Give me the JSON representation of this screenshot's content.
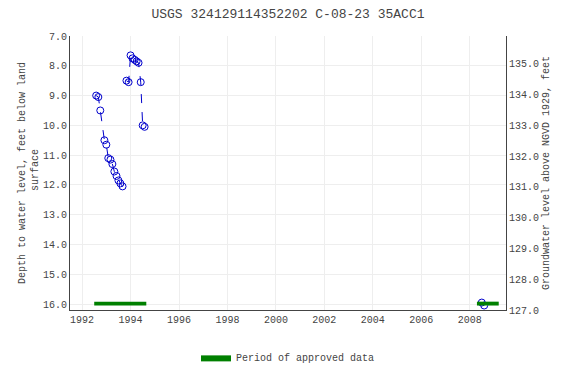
{
  "chart_data": {
    "type": "line",
    "title": "USGS 324129114352202 C-08-23 35ACC1",
    "y_label": "Depth to water level, feet below land\n surface",
    "y2_label": "Groundwater level above NGVD 1929, feet",
    "xlim": [
      1991.5,
      2009.5
    ],
    "xticks": [
      1992,
      1994,
      1996,
      1998,
      2000,
      2002,
      2004,
      2006,
      2008
    ],
    "ylim": [
      16.2,
      7.0
    ],
    "yticks": [
      {
        "value": 7.0,
        "label": "7.0"
      },
      {
        "value": 8.0,
        "label": "8.0"
      },
      {
        "value": 9.0,
        "label": "9.0"
      },
      {
        "value": 10.0,
        "label": "10.0"
      },
      {
        "value": 11.0,
        "label": "11.0"
      },
      {
        "value": 12.0,
        "label": "12.0"
      },
      {
        "value": 13.0,
        "label": "13.0"
      },
      {
        "value": 14.0,
        "label": "14.0"
      },
      {
        "value": 15.0,
        "label": "15.0"
      },
      {
        "value": 16.0,
        "label": "16.0"
      }
    ],
    "y2lim": [
      127.0,
      135.9
    ],
    "y2ticks": [
      {
        "value": 127.0,
        "label": "127.0"
      },
      {
        "value": 128.0,
        "label": "128.0"
      },
      {
        "value": 129.0,
        "label": "129.0"
      },
      {
        "value": 130.0,
        "label": "130.0"
      },
      {
        "value": 131.0,
        "label": "131.0"
      },
      {
        "value": 132.0,
        "label": "132.0"
      },
      {
        "value": 133.0,
        "label": "133.0"
      },
      {
        "value": 134.0,
        "label": "134.0"
      },
      {
        "value": 135.0,
        "label": "135.0"
      }
    ],
    "grid": true,
    "legend": "bottom",
    "series": [
      {
        "type": "line",
        "color": "#0000cc",
        "marker": "circle-open",
        "line_style": "dashed",
        "x": [
          1992.58,
          1992.67,
          1992.75,
          1992.92,
          1993.0,
          1993.08,
          1993.17,
          1993.25,
          1993.33,
          1993.42,
          1993.5,
          1993.58,
          1993.67
        ],
        "values": [
          9.0,
          9.05,
          9.5,
          10.5,
          10.65,
          11.1,
          11.15,
          11.3,
          11.55,
          11.7,
          11.85,
          11.95,
          12.05
        ]
      },
      {
        "type": "line",
        "color": "#0000cc",
        "marker": "circle-open",
        "line_style": "dashed",
        "x": [
          1993.83,
          1993.92,
          1994.0,
          1994.08,
          1994.17,
          1994.25,
          1994.33,
          1994.42,
          1994.5,
          1994.58
        ],
        "values": [
          8.5,
          8.55,
          7.65,
          7.75,
          7.8,
          7.85,
          7.9,
          8.55,
          10.0,
          10.05
        ]
      },
      {
        "type": "scatter",
        "color": "#0000cc",
        "marker": "circle-open",
        "x": [
          2008.5,
          2008.6
        ],
        "values": [
          15.95,
          16.05
        ]
      },
      {
        "type": "band",
        "name": "Period of approved data",
        "color": "#008000",
        "x_spans": [
          [
            1992.5,
            1994.65
          ],
          [
            2008.3,
            2009.2
          ]
        ],
        "y_span": [
          15.92,
          16.05
        ]
      }
    ]
  }
}
